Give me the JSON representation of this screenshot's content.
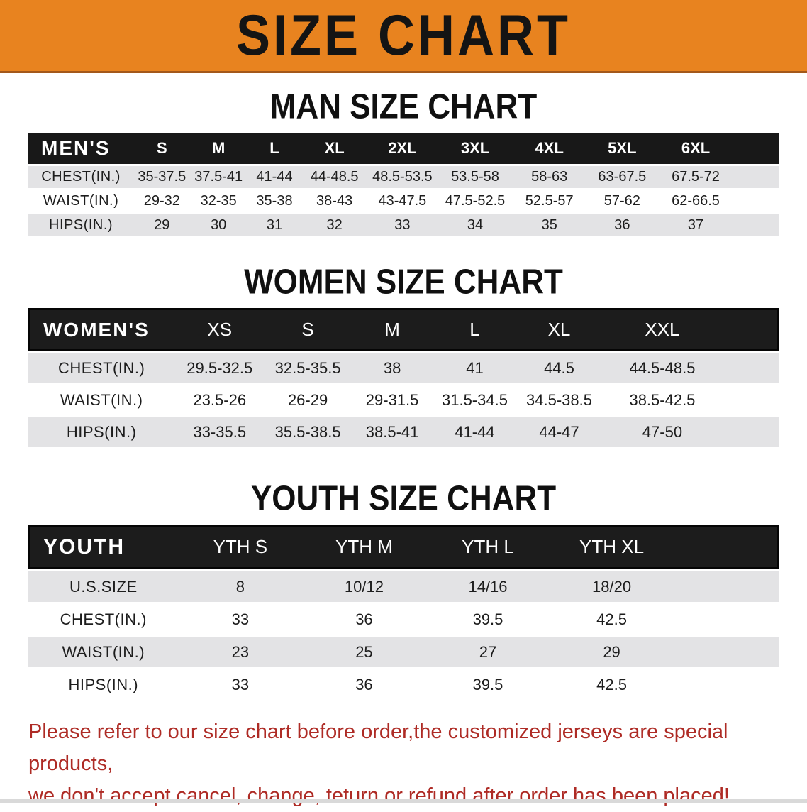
{
  "banner": {
    "title": "SIZE CHART"
  },
  "colors": {
    "banner_bg": "#E8831F",
    "banner_edge": "#A3581A",
    "header_bar": "#181818",
    "row_gray": "#E3E3E5",
    "disclaimer_red": "#AE2B25"
  },
  "sections": [
    {
      "id": "mens",
      "heading": "MAN SIZE CHART",
      "corner_label": "MEN'S",
      "columns": [
        "S",
        "M",
        "L",
        "XL",
        "2XL",
        "3XL",
        "4XL",
        "5XL",
        "6XL"
      ],
      "rows": [
        {
          "label": "CHEST(IN.)",
          "values": [
            "35-37.5",
            "37.5-41",
            "41-44",
            "44-48.5",
            "48.5-53.5",
            "53.5-58",
            "58-63",
            "63-67.5",
            "67.5-72"
          ]
        },
        {
          "label": "WAIST(IN.)",
          "values": [
            "29-32",
            "32-35",
            "35-38",
            "38-43",
            "43-47.5",
            "47.5-52.5",
            "52.5-57",
            "57-62",
            "62-66.5"
          ]
        },
        {
          "label": "HIPS(IN.)",
          "values": [
            "29",
            "30",
            "31",
            "32",
            "33",
            "34",
            "35",
            "36",
            "37"
          ]
        }
      ]
    },
    {
      "id": "womens",
      "heading": "WOMEN SIZE CHART",
      "corner_label": "WOMEN'S",
      "columns": [
        "XS",
        "S",
        "M",
        "L",
        "XL",
        "XXL"
      ],
      "rows": [
        {
          "label": "CHEST(IN.)",
          "values": [
            "29.5-32.5",
            "32.5-35.5",
            "38",
            "41",
            "44.5",
            "44.5-48.5"
          ]
        },
        {
          "label": "WAIST(IN.)",
          "values": [
            "23.5-26",
            "26-29",
            "29-31.5",
            "31.5-34.5",
            "34.5-38.5",
            "38.5-42.5"
          ]
        },
        {
          "label": "HIPS(IN.)",
          "values": [
            "33-35.5",
            "35.5-38.5",
            "38.5-41",
            "41-44",
            "44-47",
            "47-50"
          ]
        }
      ]
    },
    {
      "id": "youth",
      "heading": "YOUTH SIZE CHART",
      "corner_label": "YOUTH",
      "columns": [
        "YTH S",
        "YTH M",
        "YTH L",
        "YTH XL"
      ],
      "rows": [
        {
          "label": "U.S.SIZE",
          "values": [
            "8",
            "10/12",
            "14/16",
            "18/20"
          ]
        },
        {
          "label": "CHEST(IN.)",
          "values": [
            "33",
            "36",
            "39.5",
            "42.5"
          ]
        },
        {
          "label": "WAIST(IN.)",
          "values": [
            "23",
            "25",
            "27",
            "29"
          ]
        },
        {
          "label": "HIPS(IN.)",
          "values": [
            "33",
            "36",
            "39.5",
            "42.5"
          ]
        }
      ]
    }
  ],
  "disclaimer": {
    "line1": "Please refer to our size chart before order,the customized jerseys are special products,",
    "line2": "we don't accept cancel, change, teturn or refund after order has been placed!"
  }
}
